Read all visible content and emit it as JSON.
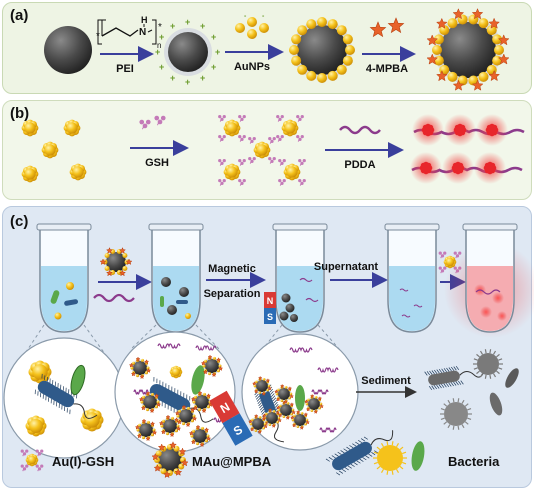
{
  "panels": {
    "a": {
      "label": "(a)",
      "polymer_n": "n",
      "polymer_nh": "H",
      "polymer_n_atom": "N",
      "polymer_star_left": "*",
      "polymer_star_right": "*",
      "step1": "PEI",
      "step2": "AuNPs",
      "step3": "4-MPBA"
    },
    "b": {
      "label": "(b)",
      "step1": "GSH",
      "step2": "PDDA"
    },
    "c": {
      "label": "(c)",
      "step1_line1": "Magnetic",
      "step1_line2": "Separation",
      "step2": "Supernatant",
      "step3": "Sediment",
      "magnet_n": "N",
      "magnet_s": "S",
      "legend": {
        "au_gsh": "Au(I)-GSH",
        "mau_mpba": "MAu@MPBA",
        "bacteria": "Bacteria"
      }
    }
  },
  "colors": {
    "arrow": "#3a3f9c",
    "gold": "#f5c21b",
    "gold_dark": "#d99a06",
    "core": "#4a4a4a",
    "shell": "#bfc4c9",
    "star": "#e8622a",
    "gsh_purple": "#c47ab8",
    "pdda_purple": "#8c3b8c",
    "red_glow": "#e8262b",
    "tube_liquid": "#9fd3ef",
    "magnet_red": "#d93a35",
    "magnet_blue": "#2a6bb5",
    "bacteria_blue": "#2f5a8a",
    "bacteria_green": "#5aa84a"
  }
}
